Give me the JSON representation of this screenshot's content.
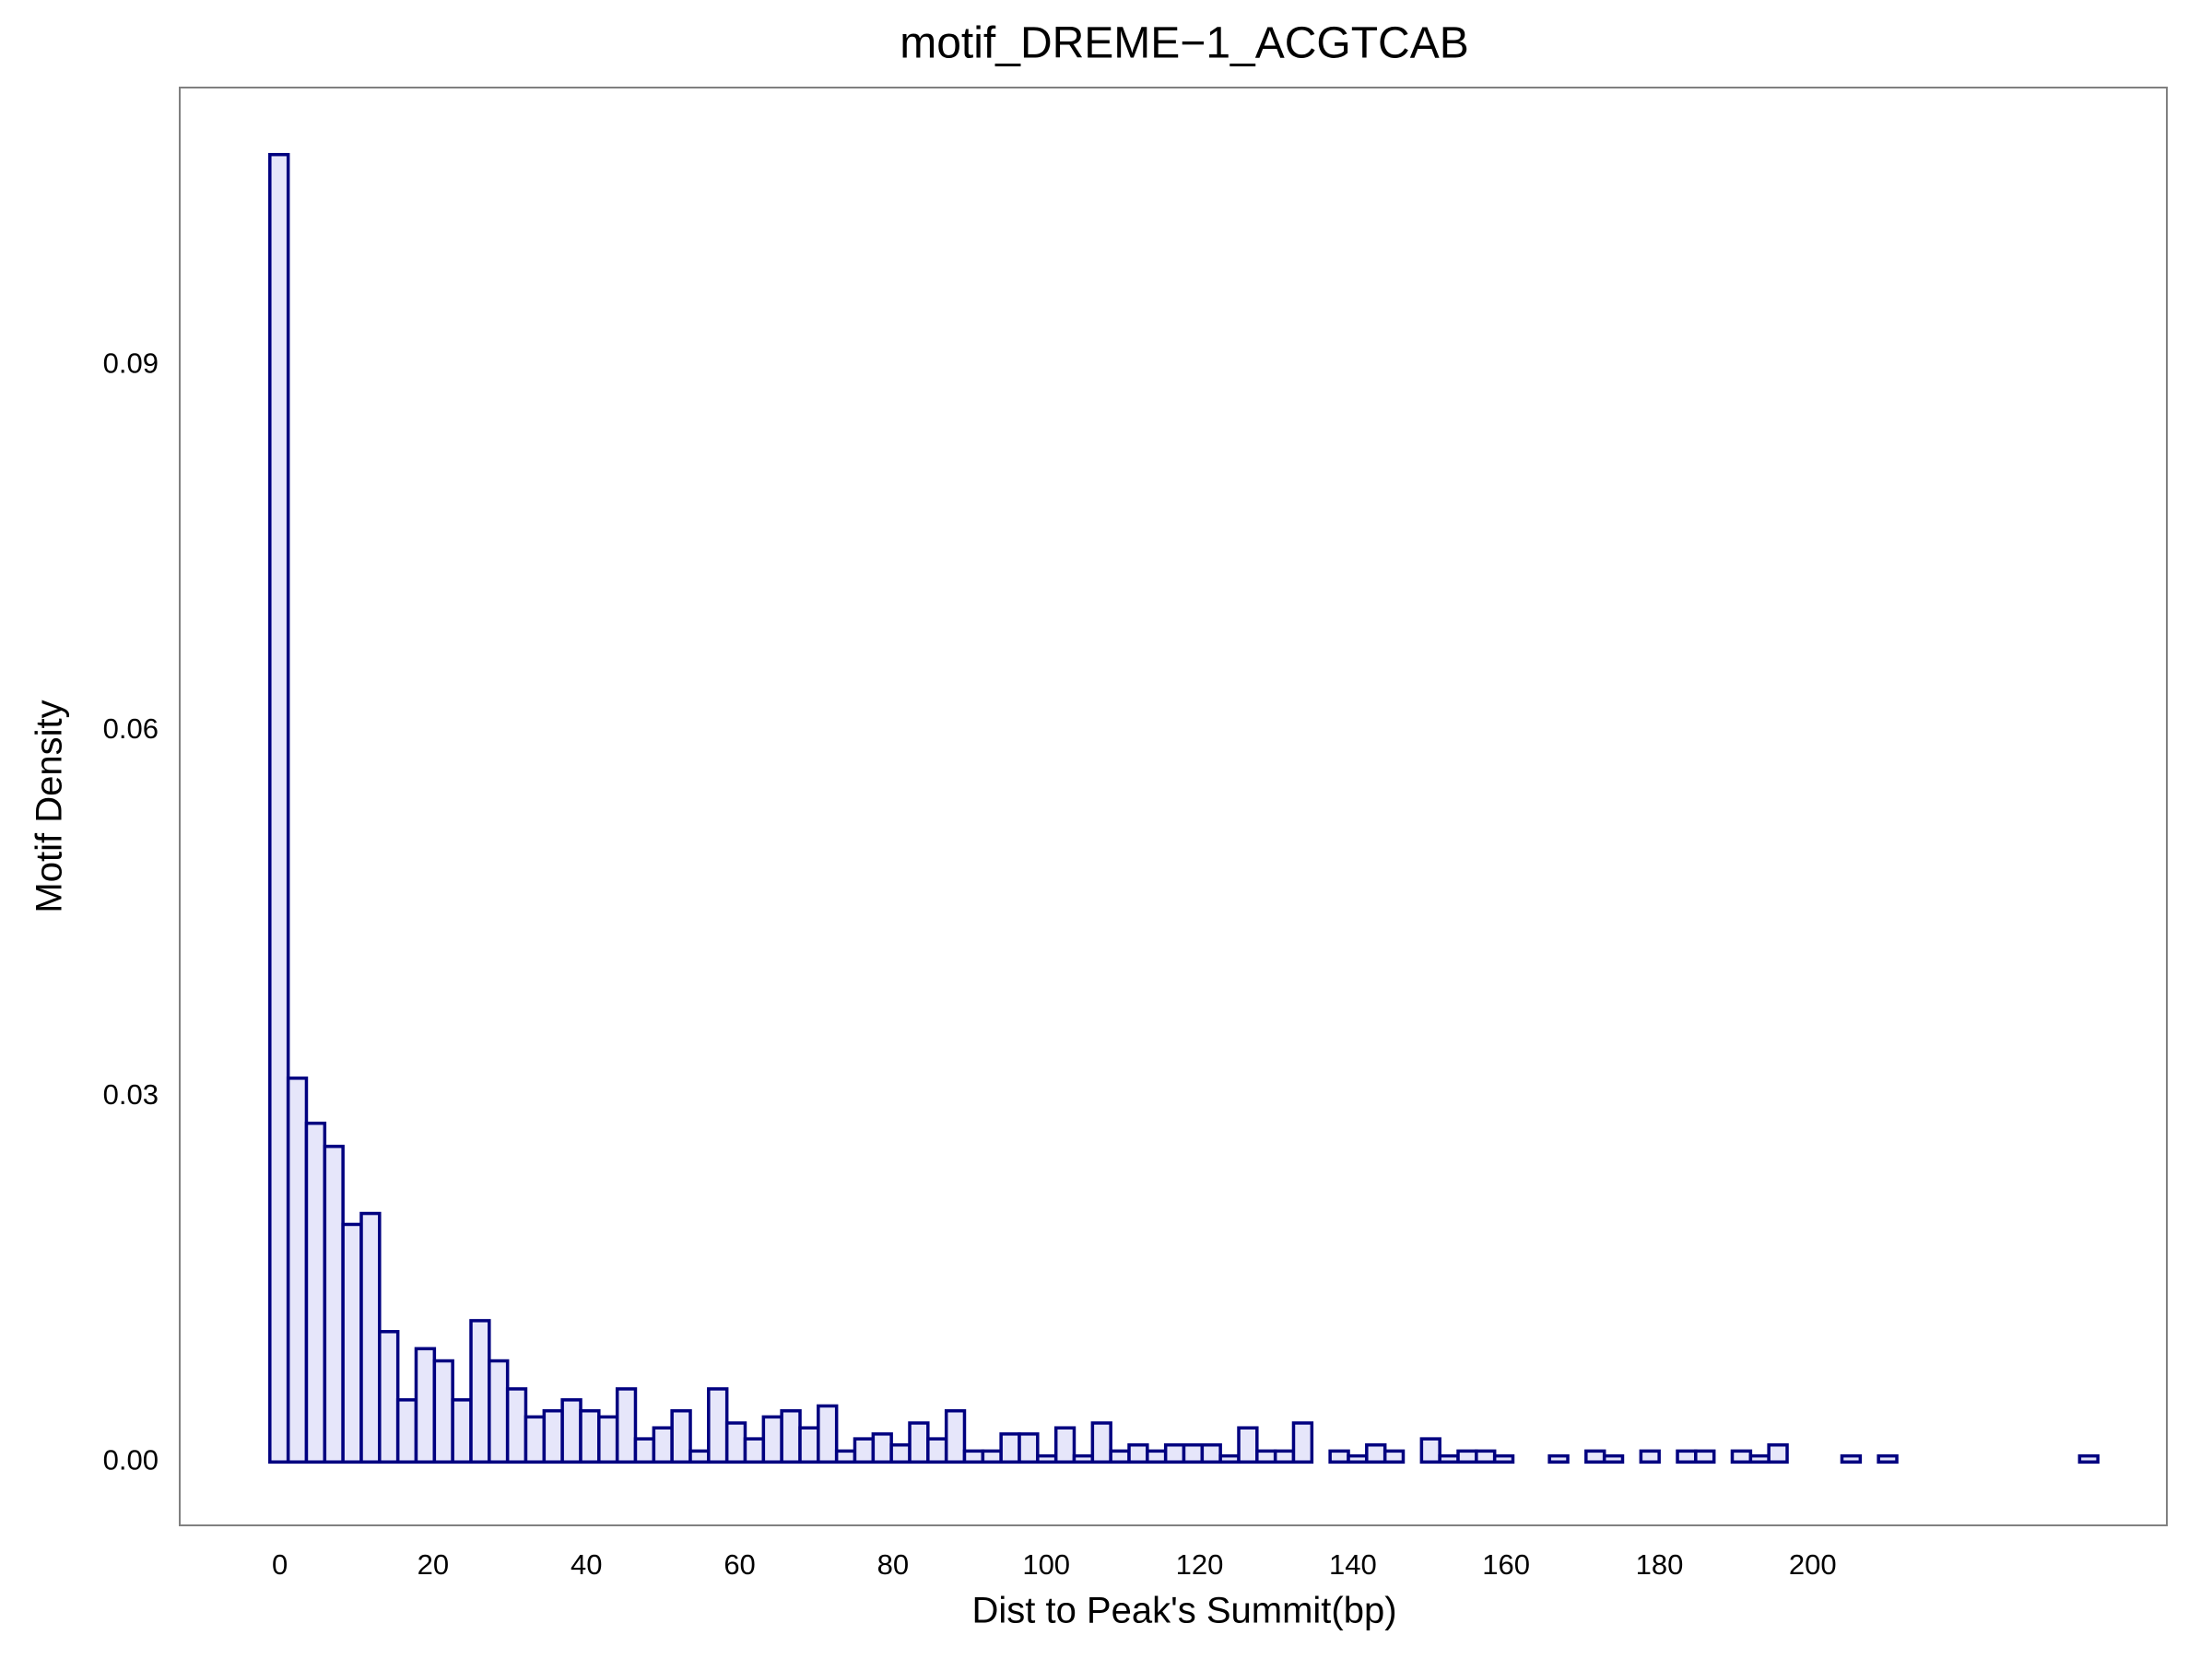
{
  "chart_data": {
    "type": "histogram",
    "title": "motif_DREME−1_ACGTCAB",
    "xlabel": "Dist to Peak's Summit(bp)",
    "ylabel": "Motif Density",
    "bins": [
      -1.3,
      1.09,
      3.47,
      5.86,
      8.24,
      10.63,
      13.01,
      15.4,
      17.78,
      20.17,
      22.55,
      24.94,
      27.32,
      29.71,
      32.09,
      34.48,
      36.86,
      39.25,
      41.63,
      44.02,
      46.4,
      48.79,
      51.17,
      53.56,
      55.94,
      58.33,
      60.71,
      63.1,
      65.48,
      67.87,
      70.25,
      72.64,
      75.02,
      77.41,
      79.79,
      82.18,
      84.56,
      86.95,
      89.33,
      91.72,
      94.1,
      96.49,
      98.87,
      101.26,
      103.64,
      106.03,
      108.41,
      110.8,
      113.18,
      115.57,
      117.95,
      120.34,
      122.72,
      125.11,
      127.49,
      129.88,
      132.26,
      134.65,
      137.03,
      139.42,
      141.8,
      144.19,
      146.57,
      148.96,
      151.34,
      153.73,
      156.11,
      158.5,
      160.88,
      163.27,
      165.65,
      168.04,
      170.42,
      172.81,
      175.19,
      177.58,
      179.96,
      182.35,
      184.73,
      187.12,
      189.5,
      191.89,
      194.27,
      196.66,
      199.04,
      201.43,
      203.81,
      206.2,
      208.58,
      210.97,
      213.35,
      215.74,
      218.12,
      220.51,
      222.89,
      225.28,
      227.66,
      230.05,
      232.43,
      234.82,
      237.2
    ],
    "values": [
      0.1073,
      0.0315,
      0.0278,
      0.0259,
      0.0195,
      0.0204,
      0.0107,
      0.0051,
      0.0093,
      0.0083,
      0.0051,
      0.0116,
      0.0083,
      0.006,
      0.0037,
      0.0042,
      0.0051,
      0.0042,
      0.0037,
      0.006,
      0.0019,
      0.0028,
      0.0042,
      0.0009,
      0.006,
      0.0032,
      0.0019,
      0.0037,
      0.0042,
      0.0028,
      0.0046,
      0.0009,
      0.0019,
      0.0023,
      0.0014,
      0.0032,
      0.0019,
      0.0042,
      0.0009,
      0.0009,
      0.0023,
      0.0023,
      0.0005,
      0.0028,
      0.0005,
      0.0032,
      0.0009,
      0.0014,
      0.0009,
      0.0014,
      0.0014,
      0.0014,
      0.0005,
      0.0028,
      0.0009,
      0.0009,
      0.0032,
      0,
      0.0009,
      0.0005,
      0.0014,
      0.0009,
      0,
      0.0019,
      0.0005,
      0.0009,
      0.0009,
      0.0005,
      0,
      0,
      0.0005,
      0,
      0.0009,
      0.0005,
      0,
      0.0009,
      0,
      0.0009,
      0.0009,
      0,
      0.0009,
      0.0005,
      0.0014,
      0,
      0,
      0,
      0.0005,
      0,
      0.0005,
      0,
      0,
      0,
      0,
      0,
      0,
      0,
      0,
      0,
      0,
      0.0005
    ],
    "color": "#e6e6fa",
    "edgecolor": "#000080",
    "xlim": [
      -13.06,
      246.2
    ],
    "ylim": [
      -0.0052,
      0.1128
    ],
    "xticks": [
      0,
      20,
      40,
      60,
      80,
      100,
      120,
      140,
      160,
      180,
      200
    ],
    "yticks": [
      {
        "value": 0,
        "label": "0.00"
      },
      0.03,
      0.06,
      0.09
    ],
    "grid": false
  }
}
